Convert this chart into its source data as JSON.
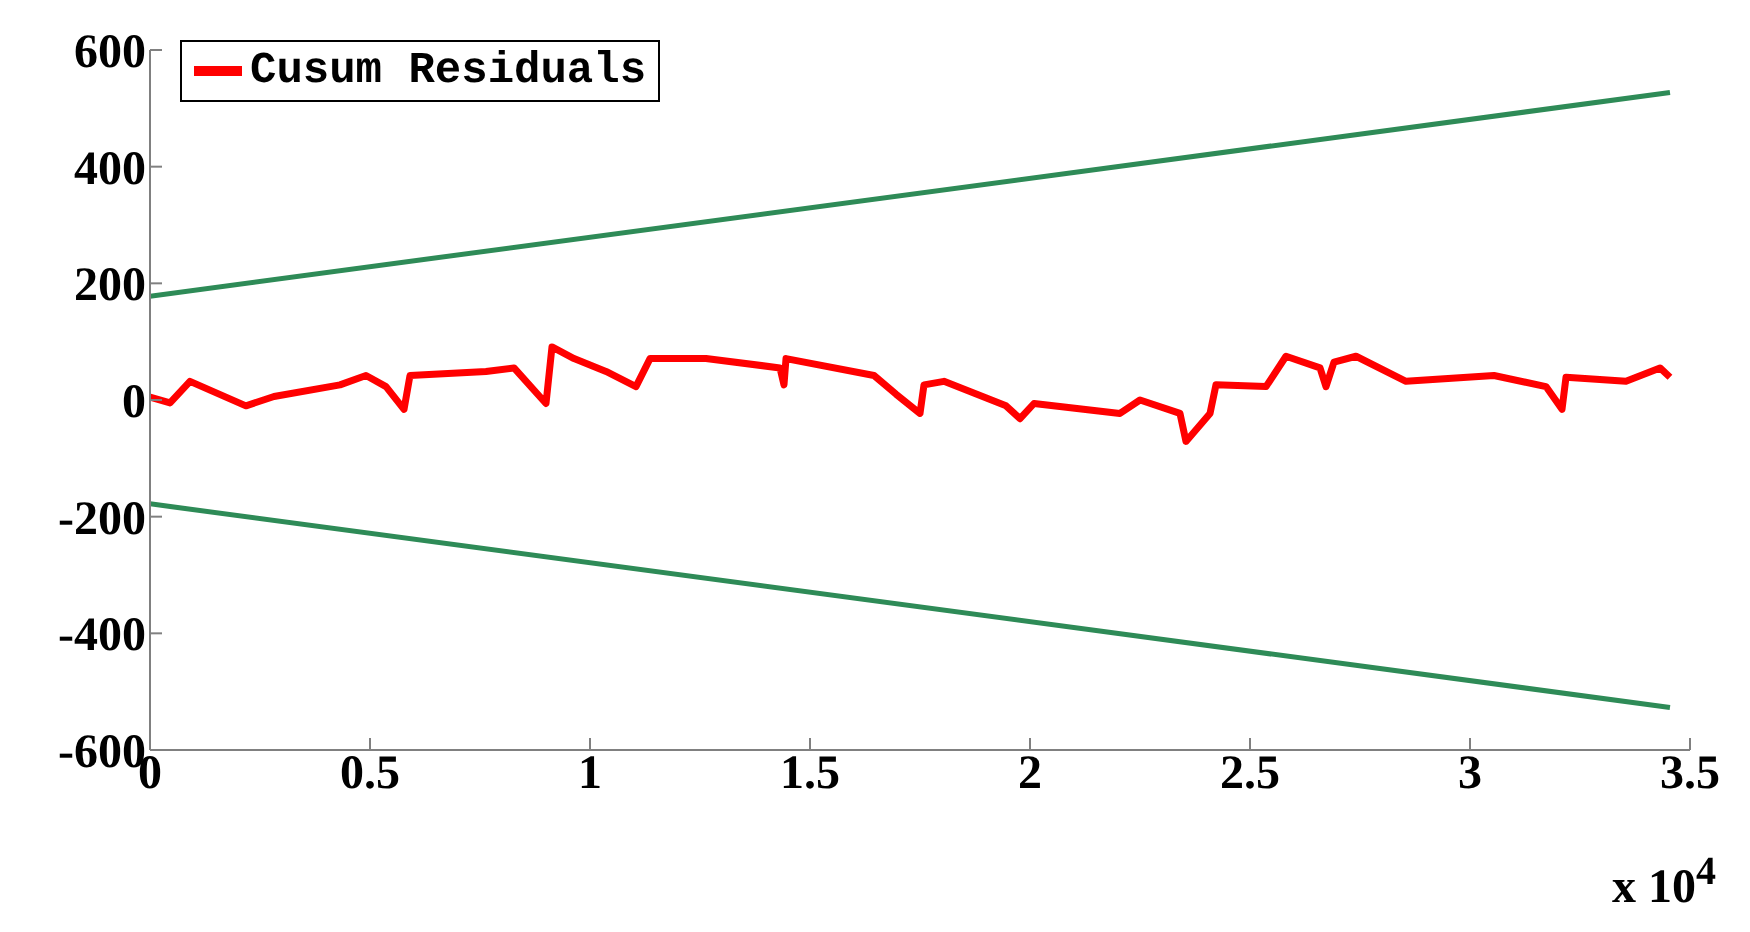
{
  "chart_data": {
    "type": "line",
    "legend": "top left",
    "grid": false,
    "line_style": "solid",
    "marker": "none",
    "xlim": [
      0,
      3.5
    ],
    "xticks": [
      0,
      0.5,
      1,
      1.5,
      2,
      2.5,
      3,
      3.5
    ],
    "ylim": [
      -600,
      600
    ],
    "yticks": [
      -600,
      -400,
      -200,
      0,
      200,
      400,
      600
    ],
    "annotations": [
      "x 10$^{4}$"
    ],
    "series": [
      {
        "name": "Cusum Residuals",
        "color": "#ff0000",
        "x": [
          0,
          0.0455,
          0.0909,
          0.218,
          0.2818,
          0.4318,
          0.4909,
          0.5364,
          0.5773,
          0.5909,
          0.7636,
          0.8273,
          0.9,
          0.9136,
          0.9636,
          1.0364,
          1.1045,
          1.1364,
          1.2636,
          1.4318,
          1.4409,
          1.4455,
          1.6455,
          1.6955,
          1.75,
          1.7591,
          1.8045,
          1.9455,
          1.9773,
          2.0091,
          2.2045,
          2.25,
          2.3409,
          2.3545,
          2.4091,
          2.4227,
          2.5364,
          2.5818,
          2.6591,
          2.6727,
          2.6909,
          2.7409,
          2.8545,
          3.0545,
          3.1727,
          3.2091,
          3.2182,
          3.3545,
          3.4318,
          3.4545
        ],
        "values": [
          5,
          -5,
          32,
          -10,
          6,
          26,
          42,
          23,
          -16,
          42,
          49,
          55,
          -6,
          91,
          71,
          49,
          23,
          71,
          71,
          55,
          26,
          71,
          42,
          10,
          -23,
          26,
          32,
          -10,
          -32,
          -6,
          -23,
          0,
          -23,
          -71,
          -23,
          26,
          23,
          75,
          55,
          23,
          65,
          75,
          32,
          42,
          23,
          -16,
          39,
          32,
          55,
          39
        ]
      },
      {
        "color": "#2e8b57",
        "x": [
          0,
          3.4545
        ],
        "values": [
          178,
          527
        ]
      },
      {
        "color": "#2e8b57",
        "x": [
          0,
          3.4545
        ],
        "values": [
          -178,
          -527
        ]
      }
    ]
  }
}
